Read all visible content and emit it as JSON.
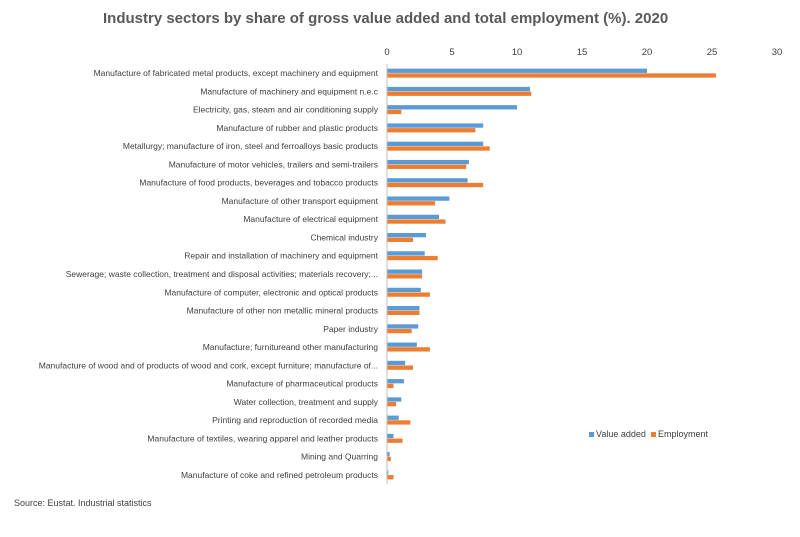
{
  "chart_data": {
    "type": "bar",
    "orientation": "horizontal",
    "title": "Industry sectors by share of gross value added and total employment (%). 2020",
    "xlim": [
      0,
      30
    ],
    "x_ticks": [
      "0",
      "5",
      "10",
      "15",
      "20",
      "25",
      "30"
    ],
    "categories": [
      "Manufacture of fabricated metal products, except machinery and equipment",
      "Manufacture of machinery and equipment n.e.c",
      "Electricity, gas, steam and air conditioning supply",
      "Manufacture of rubber and plastic products",
      "Metallurgy; manufacture of iron, steel and ferroalloys basic products",
      "Manufacture of motor vehicles, trailers and semi-trailers",
      "Manufacture of food products, beverages and tobacco products",
      "Manufacture of other transport equipment",
      "Manufacture of electrical equipment",
      "Chemical industry",
      "Repair and installation of machinery and equipment",
      "Sewerage; waste collection, treatment and disposal activities; materials recovery;...",
      "Manufacture of computer, electronic and optical products",
      "Manufacture of other non metallic mineral products",
      "Paper industry",
      "Manufacture; furnitureand other manufacturing",
      "Manufacture of wood and of products of wood and cork, except furniture; manufacture of...",
      "Manufacture of pharmaceutical products",
      "Water collection, treatment and supply",
      "Printing and reproduction of recorded media",
      "Manufacture of textiles, wearing apparel and leather products",
      "Mining and Quarring",
      "Manufacture of coke and refined petroleum products"
    ],
    "series": [
      {
        "name": "Value added",
        "color": "#5b9bd5",
        "values": [
          20.0,
          11.0,
          10.0,
          7.4,
          7.4,
          6.3,
          6.2,
          4.8,
          4.0,
          3.0,
          2.9,
          2.7,
          2.6,
          2.5,
          2.4,
          2.3,
          1.4,
          1.3,
          1.1,
          0.9,
          0.5,
          0.2,
          0.1
        ]
      },
      {
        "name": "Employment",
        "color": "#ed7d31",
        "values": [
          25.3,
          11.1,
          1.1,
          6.8,
          7.9,
          6.1,
          7.4,
          3.7,
          4.5,
          2.0,
          3.9,
          2.7,
          3.3,
          2.5,
          1.9,
          3.3,
          2.0,
          0.5,
          0.7,
          1.8,
          1.2,
          0.3,
          0.5
        ]
      }
    ],
    "legend_position": "bottom-right",
    "grid": false
  },
  "footer": {
    "source": "Source: Eustat. Industrial statistics"
  }
}
